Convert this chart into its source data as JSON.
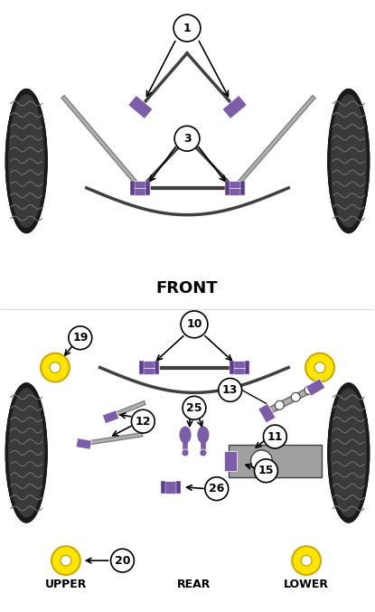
{
  "bg_color": "#ffffff",
  "purple": "#7B5EA7",
  "dark_purple": "#5B3D8A",
  "gray": "#808080",
  "light_gray": "#B0B0B0",
  "dark_gray": "#404040",
  "yellow": "#FFE400",
  "black": "#000000",
  "tire_dark": "#1a1a1a",
  "tire_light": "#555555",
  "front_label": "FRONT",
  "rear_label": "REAR",
  "upper_label": "UPPER",
  "lower_label": "LOWER"
}
